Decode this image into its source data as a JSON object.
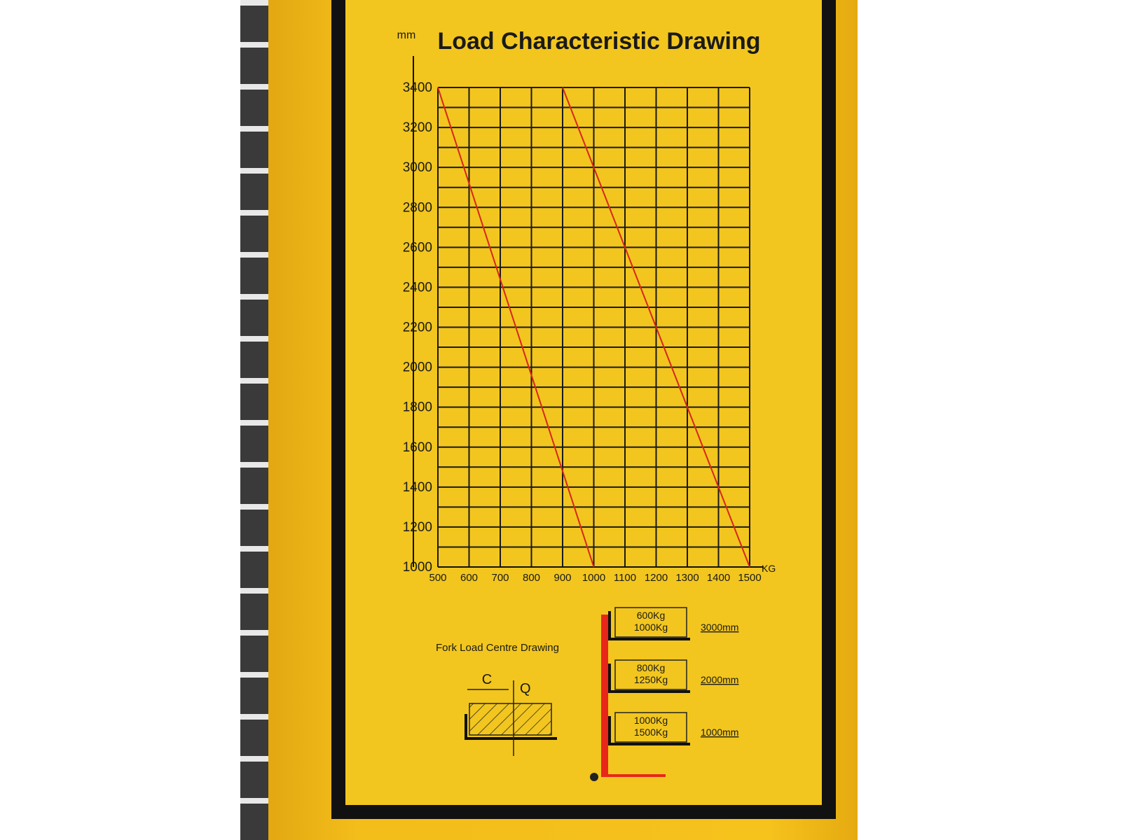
{
  "chart_data": {
    "type": "line",
    "title": "Load Characteristic Drawing",
    "xlabel": "KG",
    "ylabel": "mm",
    "xlim": [
      500,
      1500
    ],
    "ylim": [
      1000,
      3400
    ],
    "grid": true,
    "x_ticks": [
      "500",
      "600",
      "700",
      "800",
      "900",
      "1000",
      "1100",
      "1200",
      "1300",
      "1400",
      "1500"
    ],
    "y_ticks": [
      "1000",
      "1200",
      "1400",
      "1600",
      "1800",
      "2000",
      "2200",
      "2400",
      "2600",
      "2800",
      "3000",
      "3200",
      "3400"
    ],
    "series": [
      {
        "x": [
          500,
          1000
        ],
        "y": [
          3400,
          1000
        ],
        "color": "#d8261c"
      },
      {
        "x": [
          900,
          1500
        ],
        "y": [
          3400,
          1000
        ],
        "color": "#d8261c"
      }
    ]
  },
  "fork_diagram": {
    "title": "Fork Load Centre Drawing",
    "c_label": "C",
    "q_label": "Q",
    "mast_color": "#e8261a",
    "levels": [
      {
        "loads": [
          "600Kg",
          "1000Kg"
        ],
        "height": "3000mm"
      },
      {
        "loads": [
          "800Kg",
          "1250Kg"
        ],
        "height": "2000mm"
      },
      {
        "loads": [
          "1000Kg",
          "1500Kg"
        ],
        "height": "1000mm"
      }
    ]
  },
  "colors": {
    "panel": "#f2c61e",
    "grid": "#1a1a1a",
    "frame": "#111111"
  }
}
